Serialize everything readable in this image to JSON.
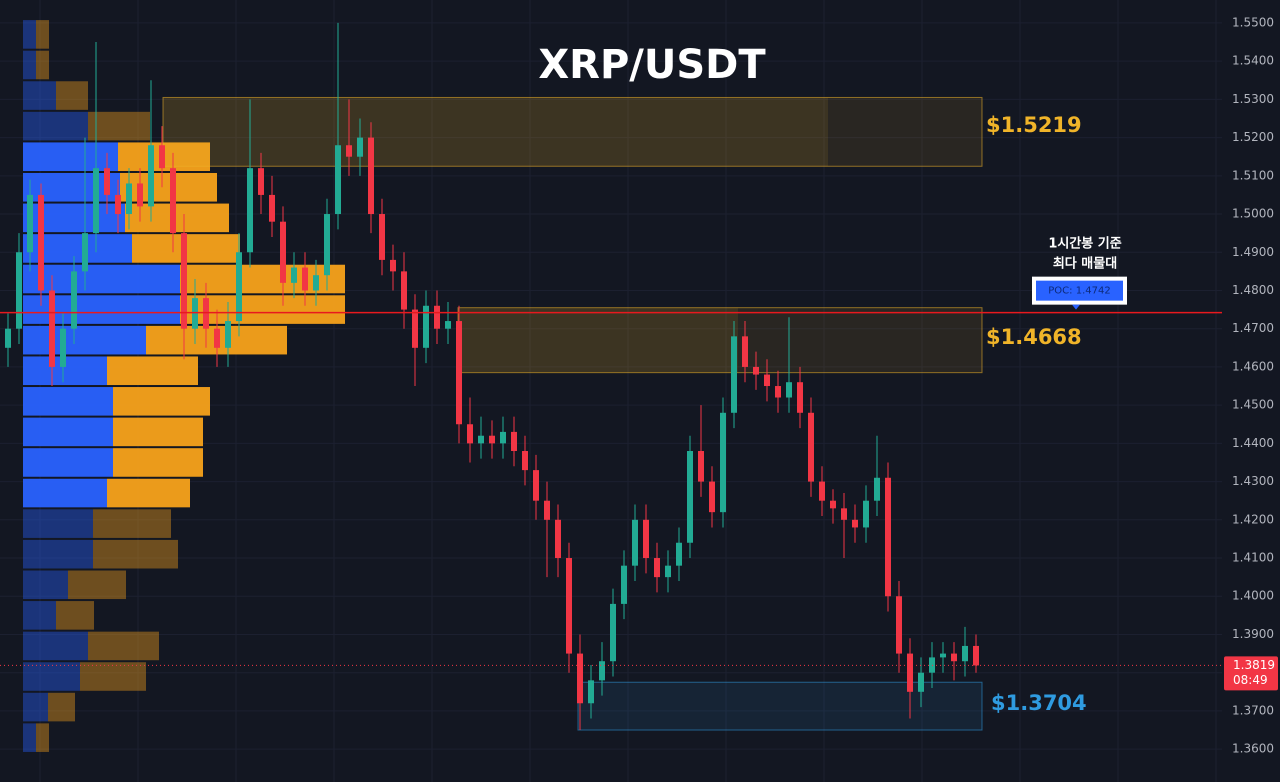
{
  "chart_data": {
    "type": "candlestick",
    "title": "XRP/USDT",
    "colors": {
      "up": "#22ab94",
      "down": "#f23645",
      "background": "#131722",
      "grid": "#1c2030",
      "poc": "#e8191e",
      "buy": "#2962ff",
      "sell": "#f7a21b"
    },
    "ylim": [
      1.3514,
      1.556
    ],
    "yticks": [
      {
        "value": 1.55,
        "label": "1.5500"
      },
      {
        "value": 1.54,
        "label": "1.5400"
      },
      {
        "value": 1.53,
        "label": "1.5300"
      },
      {
        "value": 1.52,
        "label": "1.5200"
      },
      {
        "value": 1.51,
        "label": "1.5100"
      },
      {
        "value": 1.5,
        "label": "1.5000"
      },
      {
        "value": 1.49,
        "label": "1.4900"
      },
      {
        "value": 1.48,
        "label": "1.4800"
      },
      {
        "value": 1.47,
        "label": "1.4700"
      },
      {
        "value": 1.46,
        "label": "1.4600"
      },
      {
        "value": 1.45,
        "label": "1.4500"
      },
      {
        "value": 1.44,
        "label": "1.4400"
      },
      {
        "value": 1.43,
        "label": "1.4300"
      },
      {
        "value": 1.42,
        "label": "1.4200"
      },
      {
        "value": 1.41,
        "label": "1.4100"
      },
      {
        "value": 1.4,
        "label": "1.4000"
      },
      {
        "value": 1.39,
        "label": "1.3900"
      },
      {
        "value": 1.38,
        "label": "1.3800"
      },
      {
        "value": 1.37,
        "label": "1.3700"
      },
      {
        "value": 1.36,
        "label": "1.3600"
      }
    ],
    "grid": true,
    "candles": [
      [
        1.465,
        1.474,
        1.46,
        1.47
      ],
      [
        1.47,
        1.495,
        1.466,
        1.49
      ],
      [
        1.49,
        1.509,
        1.485,
        1.505
      ],
      [
        1.505,
        1.508,
        1.476,
        1.48
      ],
      [
        1.48,
        1.484,
        1.455,
        1.46
      ],
      [
        1.46,
        1.474,
        1.456,
        1.47
      ],
      [
        1.47,
        1.489,
        1.466,
        1.485
      ],
      [
        1.485,
        1.52,
        1.48,
        1.495
      ],
      [
        1.495,
        1.545,
        1.49,
        1.512
      ],
      [
        1.512,
        1.516,
        1.5,
        1.505
      ],
      [
        1.505,
        1.509,
        1.495,
        1.5
      ],
      [
        1.5,
        1.512,
        1.496,
        1.508
      ],
      [
        1.508,
        1.512,
        1.498,
        1.502
      ],
      [
        1.502,
        1.535,
        1.498,
        1.518
      ],
      [
        1.518,
        1.523,
        1.507,
        1.512
      ],
      [
        1.512,
        1.516,
        1.49,
        1.495
      ],
      [
        1.495,
        1.5,
        1.462,
        1.47
      ],
      [
        1.47,
        1.483,
        1.466,
        1.478
      ],
      [
        1.478,
        1.482,
        1.465,
        1.47
      ],
      [
        1.47,
        1.475,
        1.46,
        1.465
      ],
      [
        1.465,
        1.477,
        1.46,
        1.472
      ],
      [
        1.472,
        1.495,
        1.468,
        1.49
      ],
      [
        1.49,
        1.53,
        1.486,
        1.512
      ],
      [
        1.512,
        1.516,
        1.5,
        1.505
      ],
      [
        1.505,
        1.51,
        1.494,
        1.498
      ],
      [
        1.498,
        1.502,
        1.476,
        1.482
      ],
      [
        1.482,
        1.49,
        1.478,
        1.486
      ],
      [
        1.486,
        1.49,
        1.476,
        1.48
      ],
      [
        1.48,
        1.488,
        1.476,
        1.484
      ],
      [
        1.484,
        1.504,
        1.48,
        1.5
      ],
      [
        1.5,
        1.55,
        1.496,
        1.518
      ],
      [
        1.518,
        1.53,
        1.51,
        1.515
      ],
      [
        1.515,
        1.525,
        1.51,
        1.52
      ],
      [
        1.52,
        1.524,
        1.495,
        1.5
      ],
      [
        1.5,
        1.504,
        1.484,
        1.488
      ],
      [
        1.488,
        1.492,
        1.48,
        1.485
      ],
      [
        1.485,
        1.49,
        1.47,
        1.475
      ],
      [
        1.475,
        1.479,
        1.455,
        1.465
      ],
      [
        1.465,
        1.48,
        1.461,
        1.476
      ],
      [
        1.476,
        1.48,
        1.466,
        1.47
      ],
      [
        1.47,
        1.477,
        1.466,
        1.472
      ],
      [
        1.472,
        1.476,
        1.44,
        1.445
      ],
      [
        1.445,
        1.452,
        1.435,
        1.44
      ],
      [
        1.44,
        1.447,
        1.436,
        1.442
      ],
      [
        1.442,
        1.446,
        1.436,
        1.44
      ],
      [
        1.44,
        1.447,
        1.436,
        1.443
      ],
      [
        1.443,
        1.447,
        1.434,
        1.438
      ],
      [
        1.438,
        1.442,
        1.429,
        1.433
      ],
      [
        1.433,
        1.437,
        1.42,
        1.425
      ],
      [
        1.425,
        1.43,
        1.405,
        1.42
      ],
      [
        1.42,
        1.424,
        1.405,
        1.41
      ],
      [
        1.41,
        1.414,
        1.38,
        1.385
      ],
      [
        1.385,
        1.39,
        1.365,
        1.372
      ],
      [
        1.372,
        1.382,
        1.368,
        1.378
      ],
      [
        1.378,
        1.388,
        1.374,
        1.383
      ],
      [
        1.383,
        1.402,
        1.379,
        1.398
      ],
      [
        1.398,
        1.412,
        1.394,
        1.408
      ],
      [
        1.408,
        1.424,
        1.404,
        1.42
      ],
      [
        1.42,
        1.424,
        1.406,
        1.41
      ],
      [
        1.41,
        1.414,
        1.401,
        1.405
      ],
      [
        1.405,
        1.412,
        1.401,
        1.408
      ],
      [
        1.408,
        1.418,
        1.404,
        1.414
      ],
      [
        1.414,
        1.442,
        1.41,
        1.438
      ],
      [
        1.438,
        1.45,
        1.426,
        1.43
      ],
      [
        1.43,
        1.434,
        1.418,
        1.422
      ],
      [
        1.422,
        1.452,
        1.418,
        1.448
      ],
      [
        1.448,
        1.472,
        1.444,
        1.468
      ],
      [
        1.468,
        1.472,
        1.456,
        1.46
      ],
      [
        1.46,
        1.464,
        1.454,
        1.458
      ],
      [
        1.458,
        1.462,
        1.451,
        1.455
      ],
      [
        1.455,
        1.459,
        1.448,
        1.452
      ],
      [
        1.452,
        1.473,
        1.448,
        1.456
      ],
      [
        1.456,
        1.46,
        1.444,
        1.448
      ],
      [
        1.448,
        1.452,
        1.426,
        1.43
      ],
      [
        1.43,
        1.434,
        1.421,
        1.425
      ],
      [
        1.425,
        1.428,
        1.419,
        1.423
      ],
      [
        1.423,
        1.427,
        1.41,
        1.42
      ],
      [
        1.42,
        1.424,
        1.414,
        1.418
      ],
      [
        1.418,
        1.429,
        1.414,
        1.425
      ],
      [
        1.425,
        1.442,
        1.421,
        1.431
      ],
      [
        1.431,
        1.435,
        1.396,
        1.4
      ],
      [
        1.4,
        1.404,
        1.38,
        1.385
      ],
      [
        1.385,
        1.389,
        1.368,
        1.375
      ],
      [
        1.375,
        1.384,
        1.371,
        1.38
      ],
      [
        1.38,
        1.388,
        1.376,
        1.384
      ],
      [
        1.384,
        1.388,
        1.38,
        1.385
      ],
      [
        1.385,
        1.388,
        1.378,
        1.383
      ],
      [
        1.383,
        1.392,
        1.379,
        1.387
      ],
      [
        1.387,
        1.39,
        1.38,
        1.3819
      ]
    ],
    "countdown": "08:49",
    "volume_profile": {
      "bins": [
        1.551,
        1.543,
        1.535,
        1.527,
        1.519,
        1.511,
        1.503,
        1.495,
        1.487,
        1.479,
        1.471,
        1.463,
        1.455,
        1.447,
        1.439,
        1.431,
        1.423,
        1.415,
        1.407,
        1.399,
        1.391,
        1.383,
        1.375,
        1.367,
        1.359
      ],
      "buy": [
        13,
        13,
        33,
        65,
        95,
        97,
        102,
        109,
        157,
        157,
        123,
        84,
        90,
        90,
        90,
        84,
        70,
        70,
        45,
        33,
        65,
        57,
        25,
        13
      ],
      "sell": [
        13,
        13,
        32,
        62,
        92,
        97,
        104,
        108,
        165,
        165,
        141,
        91,
        97,
        90,
        90,
        83,
        78,
        85,
        58,
        38,
        71,
        66,
        27,
        13
      ],
      "value_area": [
        1.423,
        1.519
      ]
    },
    "zones": [
      {
        "top": 1.5305,
        "bottom": 1.5125,
        "label": "$1.5219",
        "color": "#f0b429"
      },
      {
        "top": 1.4755,
        "bottom": 1.4585,
        "label": "$1.4668",
        "color": "#f0b429"
      },
      {
        "top": 1.3775,
        "bottom": 1.365,
        "label": "$1.3704",
        "color": "#2f9be0"
      }
    ],
    "poc": {
      "value": 1.4742,
      "label": "POC: 1.4742"
    },
    "annotation": [
      "1시간봉 기준",
      "최다 매물대"
    ]
  }
}
